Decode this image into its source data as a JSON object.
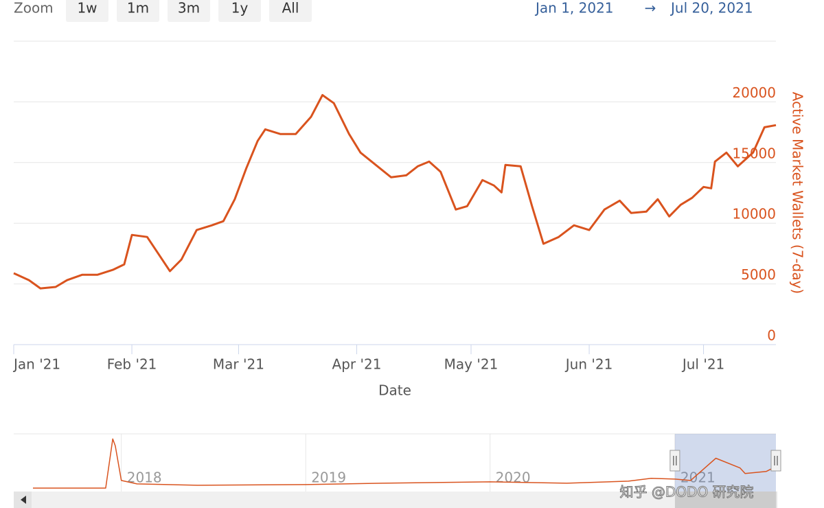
{
  "ui": {
    "zoom_label": "Zoom",
    "zoom_buttons": [
      "1w",
      "1m",
      "3m",
      "1y",
      "All"
    ],
    "range_from": "Jan 1, 2021",
    "range_arrow": "→",
    "range_to": "Jul 20, 2021",
    "watermark": "知乎 @DODO 研究院"
  },
  "chart_data": [
    {
      "type": "line",
      "x_title": "Date",
      "y_title": "Active Market Wallets (7-day)",
      "color": "#d9531e",
      "grid": true,
      "xlim": [
        "2021-01-01",
        "2021-07-20"
      ],
      "xticks": [
        {
          "value": "2021-01-01",
          "label": "Jan '21"
        },
        {
          "value": "2021-02-01",
          "label": "Feb '21"
        },
        {
          "value": "2021-03-01",
          "label": "Mar '21"
        },
        {
          "value": "2021-04-01",
          "label": "Apr '21"
        },
        {
          "value": "2021-05-01",
          "label": "May '21"
        },
        {
          "value": "2021-06-01",
          "label": "Jun '21"
        },
        {
          "value": "2021-07-01",
          "label": "Jul '21"
        }
      ],
      "ylim": [
        0,
        25000
      ],
      "yticks": [
        0,
        5000,
        10000,
        15000,
        20000
      ],
      "x": [
        "2021-01-01",
        "2021-01-05",
        "2021-01-08",
        "2021-01-12",
        "2021-01-15",
        "2021-01-19",
        "2021-01-23",
        "2021-01-27",
        "2021-01-30",
        "2021-02-01",
        "2021-02-05",
        "2021-02-08",
        "2021-02-11",
        "2021-02-14",
        "2021-02-18",
        "2021-02-22",
        "2021-02-25",
        "2021-02-28",
        "2021-03-03",
        "2021-03-06",
        "2021-03-08",
        "2021-03-12",
        "2021-03-16",
        "2021-03-20",
        "2021-03-23",
        "2021-03-26",
        "2021-03-30",
        "2021-04-02",
        "2021-04-06",
        "2021-04-10",
        "2021-04-14",
        "2021-04-17",
        "2021-04-20",
        "2021-04-23",
        "2021-04-27",
        "2021-04-30",
        "2021-05-04",
        "2021-05-07",
        "2021-05-09",
        "2021-05-10",
        "2021-05-14",
        "2021-05-17",
        "2021-05-20",
        "2021-05-24",
        "2021-05-28",
        "2021-06-01",
        "2021-06-05",
        "2021-06-09",
        "2021-06-12",
        "2021-06-16",
        "2021-06-19",
        "2021-06-22",
        "2021-06-25",
        "2021-06-28",
        "2021-07-01",
        "2021-07-03",
        "2021-07-04",
        "2021-07-07",
        "2021-07-10",
        "2021-07-14",
        "2021-07-17",
        "2021-07-20"
      ],
      "values": [
        5880,
        5310,
        4630,
        4750,
        5310,
        5760,
        5760,
        6160,
        6610,
        9040,
        8870,
        7460,
        6050,
        7010,
        9440,
        9830,
        10170,
        11980,
        14520,
        16780,
        17740,
        17350,
        17350,
        18760,
        20560,
        19890,
        17350,
        15820,
        14800,
        13790,
        13950,
        14690,
        15080,
        14240,
        11130,
        11410,
        13560,
        13110,
        12540,
        14800,
        14690,
        11410,
        8310,
        8870,
        9830,
        9440,
        11130,
        11860,
        10850,
        10960,
        11980,
        10560,
        11520,
        12090,
        12990,
        12880,
        15080,
        15820,
        14690,
        15820,
        17910,
        18080
      ]
    },
    {
      "type": "navigator",
      "color": "#d9531e",
      "xlim": [
        "2017-07-10",
        "2021-07-20"
      ],
      "ylim": [
        0,
        37000
      ],
      "xticks": [
        {
          "value": "2018-01-01",
          "label": "2018"
        },
        {
          "value": "2019-01-01",
          "label": "2019"
        },
        {
          "value": "2020-01-01",
          "label": "2020"
        },
        {
          "value": "2021-01-01",
          "label": "2021"
        }
      ],
      "x": [
        "2017-07-10",
        "2017-12-01",
        "2017-12-15",
        "2017-12-20",
        "2018-01-01",
        "2018-02-01",
        "2018-06-01",
        "2019-01-01",
        "2019-06-01",
        "2020-01-01",
        "2020-06-01",
        "2020-10-01",
        "2020-11-15",
        "2021-01-01",
        "2021-02-01",
        "2021-03-23",
        "2021-05-10",
        "2021-05-20",
        "2021-07-01",
        "2021-07-20"
      ],
      "values": [
        470,
        470,
        33600,
        28900,
        5600,
        3270,
        2340,
        2800,
        3740,
        4670,
        3740,
        5140,
        7010,
        6540,
        5600,
        20560,
        14000,
        10270,
        11680,
        14940
      ]
    }
  ]
}
